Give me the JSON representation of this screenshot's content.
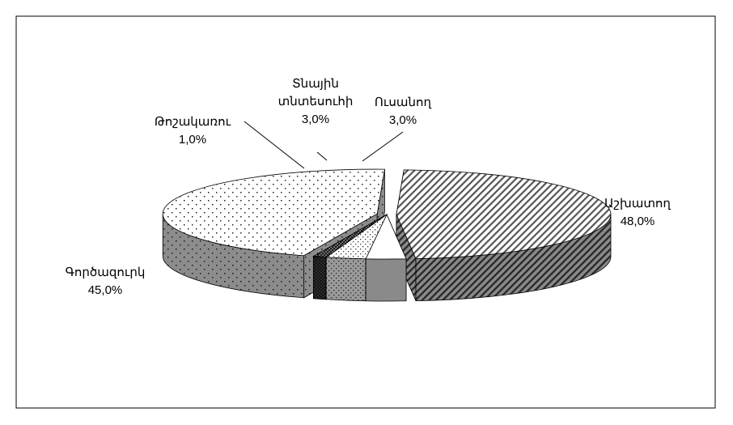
{
  "chart_data": {
    "type": "pie",
    "variant": "3d-exploded",
    "title": "",
    "categories": [
      "Աշխատող",
      "Ուսանող",
      "Տնային տնտեսուհի",
      "Թոշակառու",
      "Գործազուրկ"
    ],
    "values": [
      48.0,
      3.0,
      3.0,
      1.0,
      45.0
    ],
    "value_labels": [
      "48,0%",
      "3,0%",
      "3,0%",
      "1,0%",
      "45,0%"
    ],
    "label_lines": [
      [
        "Աշխատող"
      ],
      [
        "Ուսանող"
      ],
      [
        "Տնային",
        "տնտեսուհի"
      ],
      [
        "Թոշակառու"
      ],
      [
        "Գործազուրկ"
      ]
    ],
    "patterns": [
      "diagonal-hatch",
      "plain-white",
      "sparse-dots",
      "dense-dots",
      "dots"
    ],
    "legend": "none"
  }
}
